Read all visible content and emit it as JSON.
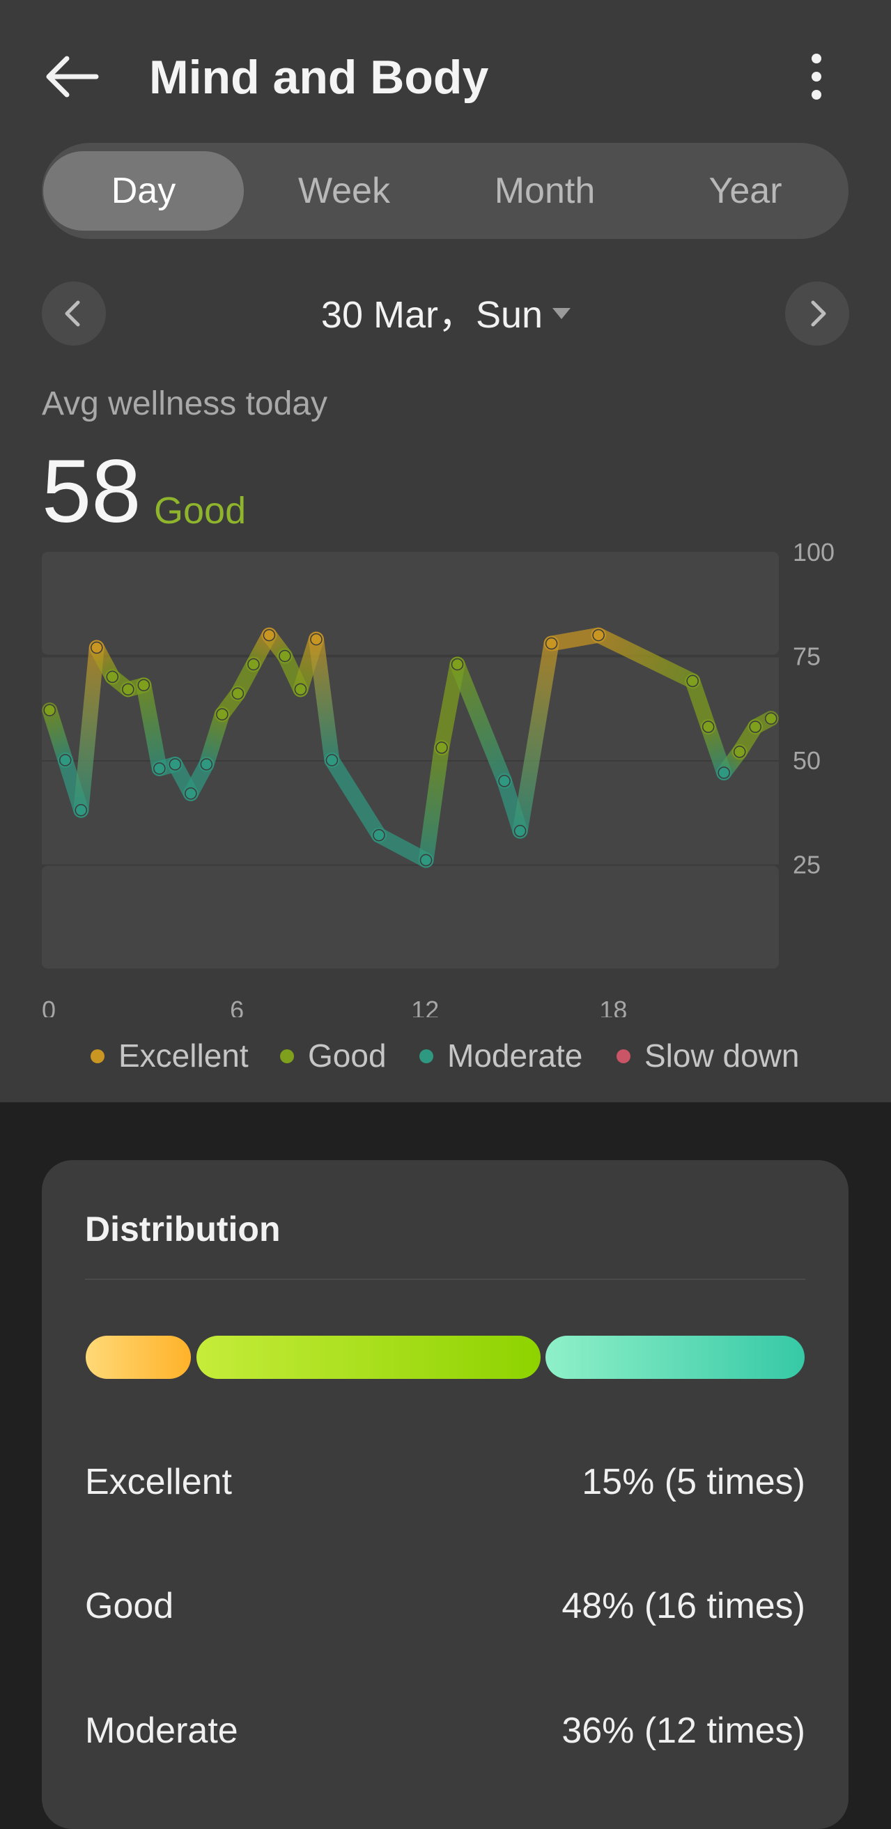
{
  "header": {
    "title": "Mind and Body",
    "back_icon": "arrow-left-icon",
    "more_icon": "more-vertical-icon"
  },
  "tabs": [
    {
      "label": "Day",
      "active": true
    },
    {
      "label": "Week",
      "active": false
    },
    {
      "label": "Month",
      "active": false
    },
    {
      "label": "Year",
      "active": false
    }
  ],
  "date_nav": {
    "date_label": "30 Mar，Sun",
    "prev_icon": "chevron-left-icon",
    "next_icon": "chevron-right-icon",
    "dropdown_icon": "caret-down-icon"
  },
  "summary": {
    "label": "Avg wellness today",
    "value": "58",
    "status": "Good",
    "status_color": "#8fb52c"
  },
  "colors": {
    "excellent": "#c99622",
    "good": "#7ea01c",
    "moderate": "#2f9880",
    "slow_down": "#c95566",
    "background": "#3b3b3b",
    "card": "#3c3c3c"
  },
  "chart_data": {
    "type": "line",
    "xlabel": "",
    "ylabel": "",
    "xlim": [
      0,
      23.5
    ],
    "ylim": [
      0,
      100
    ],
    "x_ticks": [
      0,
      6,
      12,
      18
    ],
    "y_ticks": [
      25,
      50,
      75,
      100
    ],
    "grid": true,
    "legend_position": "bottom",
    "legend": [
      "Excellent",
      "Good",
      "Moderate",
      "Slow down"
    ],
    "points": [
      {
        "x": 0.25,
        "y": 62,
        "level": "good"
      },
      {
        "x": 0.75,
        "y": 50,
        "level": "moderate"
      },
      {
        "x": 1.25,
        "y": 38,
        "level": "moderate"
      },
      {
        "x": 1.75,
        "y": 77,
        "level": "excellent"
      },
      {
        "x": 2.25,
        "y": 70,
        "level": "good"
      },
      {
        "x": 2.75,
        "y": 67,
        "level": "good"
      },
      {
        "x": 3.25,
        "y": 68,
        "level": "good"
      },
      {
        "x": 3.75,
        "y": 48,
        "level": "moderate"
      },
      {
        "x": 4.25,
        "y": 49,
        "level": "moderate"
      },
      {
        "x": 4.75,
        "y": 42,
        "level": "moderate"
      },
      {
        "x": 5.25,
        "y": 49,
        "level": "moderate"
      },
      {
        "x": 5.75,
        "y": 61,
        "level": "good"
      },
      {
        "x": 6.25,
        "y": 66,
        "level": "good"
      },
      {
        "x": 6.75,
        "y": 73,
        "level": "good"
      },
      {
        "x": 7.25,
        "y": 80,
        "level": "excellent"
      },
      {
        "x": 7.75,
        "y": 75,
        "level": "good"
      },
      {
        "x": 8.25,
        "y": 67,
        "level": "good"
      },
      {
        "x": 8.75,
        "y": 79,
        "level": "excellent"
      },
      {
        "x": 9.25,
        "y": 50,
        "level": "moderate"
      },
      {
        "x": 10.75,
        "y": 32,
        "level": "moderate"
      },
      {
        "x": 12.25,
        "y": 26,
        "level": "moderate"
      },
      {
        "x": 12.75,
        "y": 53,
        "level": "good"
      },
      {
        "x": 13.25,
        "y": 73,
        "level": "good"
      },
      {
        "x": 14.75,
        "y": 45,
        "level": "moderate"
      },
      {
        "x": 15.25,
        "y": 33,
        "level": "moderate"
      },
      {
        "x": 16.25,
        "y": 78,
        "level": "excellent"
      },
      {
        "x": 17.75,
        "y": 80,
        "level": "excellent"
      },
      {
        "x": 20.75,
        "y": 69,
        "level": "good"
      },
      {
        "x": 21.25,
        "y": 58,
        "level": "good"
      },
      {
        "x": 21.75,
        "y": 47,
        "level": "moderate"
      },
      {
        "x": 22.25,
        "y": 52,
        "level": "good"
      },
      {
        "x": 22.75,
        "y": 58,
        "level": "good"
      },
      {
        "x": 23.25,
        "y": 60,
        "level": "good"
      }
    ]
  },
  "distribution": {
    "title": "Distribution",
    "bar": [
      {
        "level": "Excellent",
        "fraction": 0.15
      },
      {
        "level": "Good",
        "fraction": 0.48
      },
      {
        "level": "Moderate",
        "fraction": 0.36
      }
    ],
    "rows": [
      {
        "name": "Excellent",
        "value": "15% (5 times)"
      },
      {
        "name": "Good",
        "value": "48% (16 times)"
      },
      {
        "name": "Moderate",
        "value": "36% (12 times)"
      }
    ]
  }
}
